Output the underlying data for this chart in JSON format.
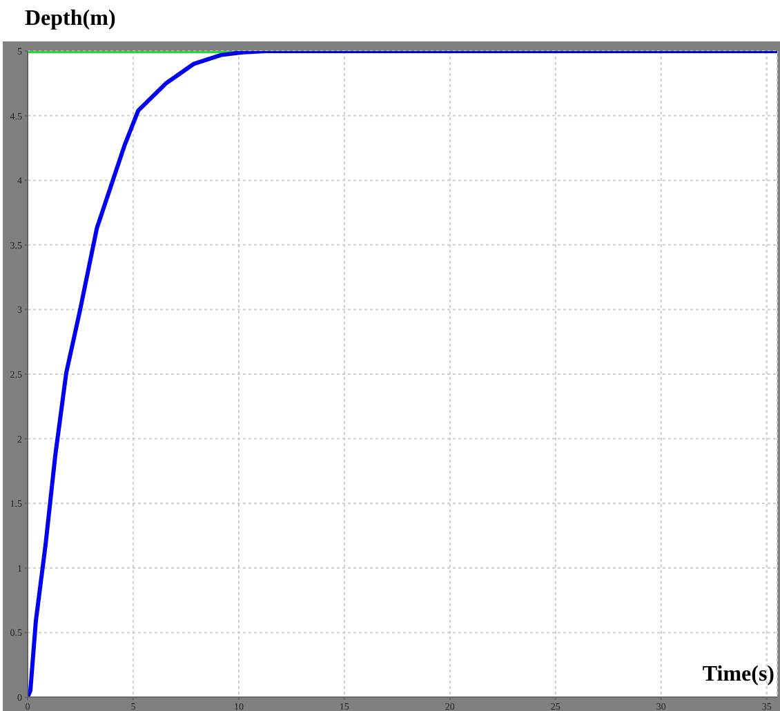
{
  "chart_data": {
    "type": "line",
    "title": "Depth(m)",
    "xlabel": "Time(s)",
    "xlim": [
      0,
      35.5
    ],
    "xticks": [
      0,
      5,
      10,
      15,
      20,
      25,
      30,
      35
    ],
    "ylim": [
      0,
      5
    ],
    "yticks": [
      0,
      0.5,
      1,
      1.5,
      2,
      2.5,
      3,
      3.5,
      4,
      4.5,
      5
    ],
    "grid": true,
    "marker": "none",
    "line_style": "solid",
    "series": [
      {
        "color": "#22dd22",
        "x": [
          0,
          11.3
        ],
        "values": [
          5,
          5
        ]
      },
      {
        "color": "#0000ee",
        "x": [
          0,
          0.13,
          0.39,
          0.85,
          1.31,
          1.83,
          2.49,
          3.28,
          4.59,
          5.24,
          6.55,
          7.86,
          9.17,
          10.2,
          11.3,
          35.5
        ],
        "values": [
          0,
          0.05,
          0.59,
          1.18,
          1.87,
          2.51,
          3.0,
          3.63,
          4.27,
          4.54,
          4.75,
          4.9,
          4.97,
          4.99,
          5,
          5
        ]
      }
    ]
  }
}
